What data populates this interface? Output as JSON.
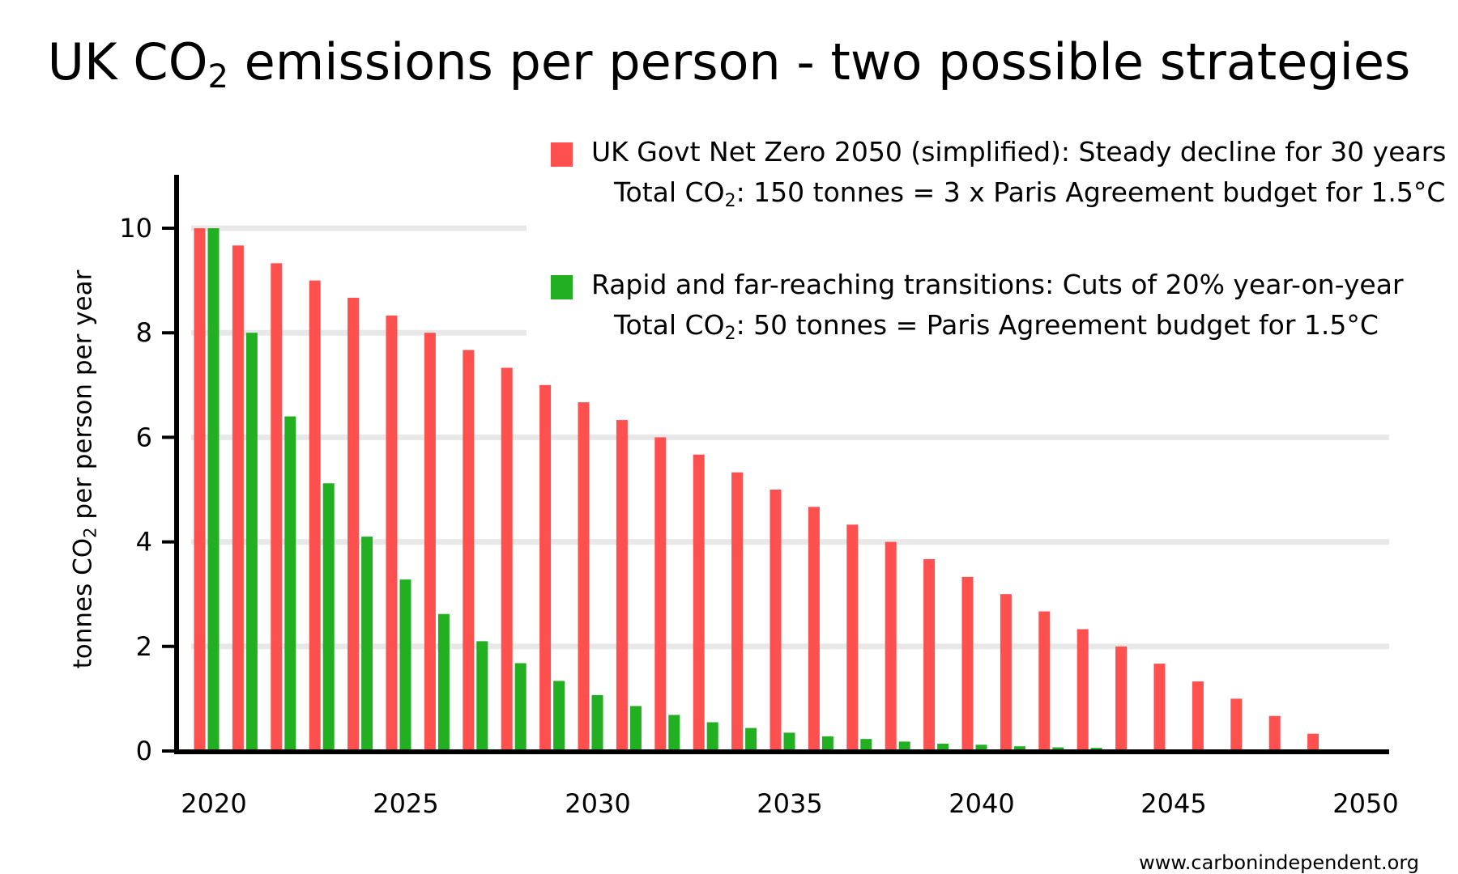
{
  "title": {
    "prefix": "UK CO",
    "sub": "2",
    "suffix": " emissions per person - two possible strategies"
  },
  "source": "www.carbonindependent.org",
  "legend": [
    {
      "color": "#ff5050",
      "line1": "UK Govt Net Zero 2050 (simplified): Steady decline for 30 years",
      "line2_prefix": "Total CO",
      "line2_sub": "2",
      "line2_suffix": ":  150 tonnes = 3 x Paris Agreement budget for 1.5°C"
    },
    {
      "color": "#22b022",
      "line1": "Rapid and far-reaching transitions: Cuts of 20% year-on-year",
      "line2_prefix": "Total CO",
      "line2_sub": "2",
      "line2_suffix": ":  50 tonnes = Paris Agreement budget for 1.5°C"
    }
  ],
  "chart_data": {
    "type": "bar",
    "title": "UK CO2 emissions per person - two possible strategies",
    "xlabel": "",
    "ylabel": "tonnes CO2 per person per year",
    "ylabel_parts": {
      "prefix": "tonnes CO",
      "sub": "2",
      "suffix": " per person per year"
    },
    "ylim": [
      0,
      11
    ],
    "yticks": [
      0,
      2,
      4,
      6,
      8,
      10
    ],
    "xticks": [
      "2020",
      "2025",
      "2030",
      "2035",
      "2040",
      "2045",
      "2050"
    ],
    "categories": [
      "2020",
      "2021",
      "2022",
      "2023",
      "2024",
      "2025",
      "2026",
      "2027",
      "2028",
      "2029",
      "2030",
      "2031",
      "2032",
      "2033",
      "2034",
      "2035",
      "2036",
      "2037",
      "2038",
      "2039",
      "2040",
      "2041",
      "2042",
      "2043",
      "2044",
      "2045",
      "2046",
      "2047",
      "2048",
      "2049",
      "2050"
    ],
    "grid": true,
    "series": [
      {
        "name": "UK Govt Net Zero 2050 (simplified): Steady decline for 30 years",
        "color": "#ff5050",
        "values": [
          10,
          9.67,
          9.33,
          9.0,
          8.67,
          8.33,
          8.0,
          7.67,
          7.33,
          7.0,
          6.67,
          6.33,
          6.0,
          5.67,
          5.33,
          5.0,
          4.67,
          4.33,
          4.0,
          3.67,
          3.33,
          3.0,
          2.67,
          2.33,
          2.0,
          1.67,
          1.33,
          1.0,
          0.67,
          0.33,
          0
        ]
      },
      {
        "name": "Rapid and far-reaching transitions: Cuts of 20% year-on-year",
        "color": "#22b022",
        "values": [
          10,
          8.0,
          6.4,
          5.12,
          4.1,
          3.28,
          2.62,
          2.1,
          1.68,
          1.34,
          1.07,
          0.86,
          0.69,
          0.55,
          0.44,
          0.35,
          0.28,
          0.23,
          0.18,
          0.14,
          0.12,
          0.09,
          0.07,
          0.06,
          0,
          0,
          0,
          0,
          0,
          0,
          0
        ]
      }
    ]
  }
}
